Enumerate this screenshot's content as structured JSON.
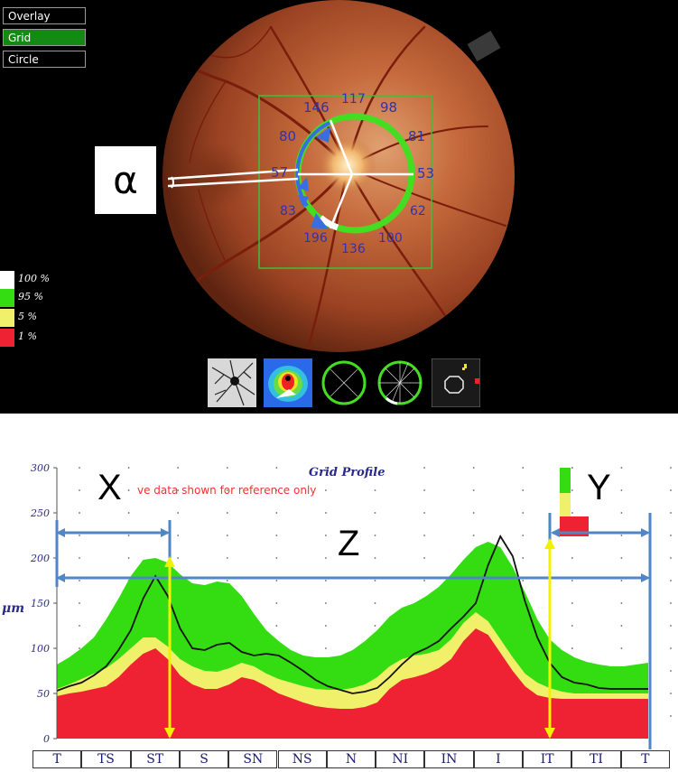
{
  "overlay_buttons": [
    {
      "label": "Overlay",
      "active": false
    },
    {
      "label": "Grid",
      "active": true
    },
    {
      "label": "Circle",
      "active": false
    }
  ],
  "legend": [
    {
      "label": "100 %",
      "color": "#ffffff"
    },
    {
      "label": "95 %",
      "color": "#33dd11"
    },
    {
      "label": "5 %",
      "color": "#f0f06a"
    },
    {
      "label": "1 %",
      "color": "#ee2233"
    }
  ],
  "fundus_values": {
    "v117": "117",
    "v146": "146",
    "v98": "98",
    "v80": "80",
    "v81": "81",
    "v57": "57",
    "v53": "53",
    "v83": "83",
    "v62": "62",
    "v196": "196",
    "v136": "136",
    "v100": "100"
  },
  "alpha_label": "α",
  "thumbnails": [
    "vessel-map",
    "thickness-map",
    "circle-grid",
    "sector-grid",
    "optic-disc-outline"
  ],
  "chart_data": {
    "type": "area",
    "title": "Grid Profile",
    "subtitle": "ve data shown for reference only",
    "ylabel": "μm",
    "ylim": [
      0,
      300
    ],
    "yticks": [
      0,
      50,
      100,
      150,
      200,
      250,
      300
    ],
    "x": [
      0,
      0.25,
      0.5,
      0.75,
      1,
      1.25,
      1.5,
      1.75,
      2,
      2.25,
      2.5,
      2.75,
      3,
      3.25,
      3.5,
      3.75,
      4,
      4.25,
      4.5,
      4.75,
      5,
      5.25,
      5.5,
      5.75,
      6,
      6.25,
      6.5,
      6.75,
      7,
      7.25,
      7.5,
      7.75,
      8,
      8.25,
      8.5,
      8.75,
      9,
      9.25,
      9.5,
      9.75,
      10,
      10.25,
      10.5,
      10.75,
      11,
      11.25,
      11.5,
      11.75,
      12
    ],
    "categories": [
      "T",
      "TS",
      "ST",
      "S",
      "SN",
      "NS",
      "N",
      "NI",
      "IN",
      "I",
      "IT",
      "TI",
      "T"
    ],
    "series": [
      {
        "name": "100 %",
        "values": [
          82,
          90,
          100,
          112,
          132,
          155,
          180,
          198,
          200,
          195,
          182,
          172,
          170,
          174,
          172,
          158,
          138,
          120,
          108,
          98,
          92,
          90,
          90,
          92,
          98,
          108,
          120,
          135,
          145,
          150,
          158,
          168,
          182,
          198,
          212,
          218,
          212,
          190,
          162,
          132,
          110,
          98,
          90,
          85,
          82,
          80,
          80,
          82,
          84
        ],
        "color": "#33dd11"
      },
      {
        "name": "95 %",
        "values": [
          55,
          60,
          66,
          72,
          78,
          88,
          100,
          112,
          112,
          102,
          88,
          80,
          75,
          74,
          78,
          84,
          80,
          72,
          66,
          62,
          58,
          55,
          54,
          54,
          56,
          60,
          68,
          80,
          88,
          92,
          94,
          98,
          110,
          128,
          140,
          130,
          110,
          90,
          72,
          62,
          56,
          52,
          50,
          50,
          50,
          50,
          50,
          50,
          50
        ],
        "color": "#f0f06a"
      },
      {
        "name": "5 %",
        "values": [
          47,
          50,
          52,
          55,
          58,
          68,
          82,
          94,
          100,
          88,
          70,
          60,
          55,
          55,
          60,
          68,
          65,
          58,
          50,
          45,
          40,
          36,
          34,
          33,
          33,
          35,
          40,
          55,
          65,
          68,
          72,
          78,
          88,
          108,
          122,
          115,
          95,
          75,
          58,
          48,
          45,
          44,
          44,
          44,
          44,
          44,
          44,
          44,
          44
        ],
        "color": "#ee2233"
      },
      {
        "name": "Profile",
        "values": [
          53,
          58,
          62,
          70,
          80,
          98,
          120,
          155,
          180,
          158,
          122,
          100,
          98,
          104,
          106,
          96,
          92,
          94,
          92,
          84,
          75,
          65,
          58,
          54,
          50,
          52,
          56,
          68,
          82,
          94,
          100,
          108,
          122,
          135,
          150,
          192,
          224,
          202,
          152,
          112,
          84,
          68,
          62,
          60,
          56,
          55,
          55,
          55,
          55
        ],
        "color": "#111111"
      }
    ]
  },
  "annotations": {
    "x_label": "X",
    "y_label": "Y",
    "z_label": "Z"
  }
}
